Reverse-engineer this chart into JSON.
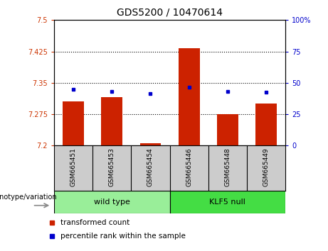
{
  "title": "GDS5200 / 10470614",
  "samples": [
    "GSM665451",
    "GSM665453",
    "GSM665454",
    "GSM665446",
    "GSM665448",
    "GSM665449"
  ],
  "red_values": [
    7.305,
    7.315,
    7.205,
    7.432,
    7.275,
    7.3
  ],
  "blue_values": [
    7.335,
    7.33,
    7.325,
    7.34,
    7.33,
    7.328
  ],
  "ylim_left": [
    7.2,
    7.5
  ],
  "ylim_right": [
    0,
    100
  ],
  "yticks_left": [
    7.2,
    7.275,
    7.35,
    7.425,
    7.5
  ],
  "yticks_right": [
    0,
    25,
    50,
    75,
    100
  ],
  "ytick_labels_left": [
    "7.2",
    "7.275",
    "7.35",
    "7.425",
    "7.5"
  ],
  "ytick_labels_right": [
    "0",
    "25",
    "50",
    "75",
    "100%"
  ],
  "hlines": [
    7.275,
    7.35,
    7.425
  ],
  "bar_color": "#cc2200",
  "dot_color": "#0000cc",
  "bar_bottom": 7.2,
  "bar_width": 0.55,
  "group1_label": "wild type",
  "group2_label": "KLF5 null",
  "group1_color": "#99ee99",
  "group2_color": "#44dd44",
  "xtick_bg_color": "#cccccc",
  "xlabel_text": "genotype/variation",
  "legend_red": "transformed count",
  "legend_blue": "percentile rank within the sample",
  "tick_label_color_left": "#cc3300",
  "tick_label_color_right": "#0000cc"
}
